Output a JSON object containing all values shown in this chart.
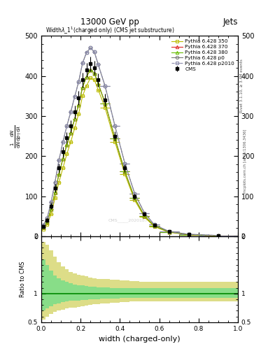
{
  "title_top": "13000 GeV pp",
  "title_right": "Jets",
  "plot_title": "Width$\\lambda$_1$^1$(charged only) (CMS jet substructure)",
  "xlabel": "width (charged-only)",
  "ylabel_ratio": "Ratio to CMS",
  "right_label_top": "Rivet 3.1.10, ≥ 3.4M events",
  "right_label_bottom": "mcplots.cern.ch [arXiv:1306.3436]",
  "watermark": "CMS_____2020187",
  "x_bins": [
    0.0,
    0.02,
    0.04,
    0.06,
    0.08,
    0.1,
    0.12,
    0.14,
    0.16,
    0.18,
    0.2,
    0.22,
    0.24,
    0.26,
    0.28,
    0.3,
    0.35,
    0.4,
    0.45,
    0.5,
    0.55,
    0.6,
    0.7,
    0.8,
    1.0
  ],
  "cms_values": [
    25,
    40,
    75,
    120,
    170,
    210,
    245,
    275,
    310,
    345,
    390,
    415,
    430,
    420,
    390,
    340,
    250,
    170,
    100,
    55,
    28,
    12,
    5,
    2
  ],
  "cms_errors": [
    4,
    5,
    8,
    10,
    12,
    13,
    14,
    15,
    16,
    17,
    18,
    18,
    18,
    18,
    17,
    16,
    12,
    9,
    7,
    5,
    3,
    2,
    1,
    1
  ],
  "p350_values": [
    18,
    30,
    55,
    95,
    135,
    170,
    205,
    235,
    270,
    305,
    350,
    375,
    395,
    390,
    365,
    320,
    235,
    155,
    90,
    48,
    24,
    10,
    4,
    1
  ],
  "p370_values": [
    22,
    36,
    68,
    110,
    155,
    193,
    228,
    258,
    293,
    328,
    372,
    398,
    415,
    407,
    380,
    332,
    244,
    162,
    95,
    51,
    26,
    11,
    4,
    1
  ],
  "p380_values": [
    22,
    36,
    68,
    110,
    155,
    193,
    228,
    258,
    293,
    328,
    372,
    398,
    415,
    407,
    380,
    332,
    244,
    162,
    95,
    51,
    26,
    11,
    4,
    1
  ],
  "p0_values": [
    28,
    45,
    85,
    135,
    190,
    235,
    275,
    310,
    348,
    385,
    432,
    458,
    470,
    460,
    428,
    374,
    275,
    182,
    107,
    58,
    29,
    12,
    5,
    2
  ],
  "p2010_values": [
    28,
    45,
    85,
    135,
    190,
    235,
    275,
    310,
    348,
    385,
    432,
    458,
    470,
    460,
    428,
    374,
    275,
    182,
    107,
    58,
    29,
    12,
    5,
    2
  ],
  "color_cms": "#000000",
  "color_p350": "#bbbb00",
  "color_p370": "#dd2222",
  "color_p380": "#66bb00",
  "color_p0": "#777777",
  "color_p2010": "#8888aa",
  "ylim_main": [
    0,
    500
  ],
  "yticks_main": [
    0,
    100,
    200,
    300,
    400,
    500
  ],
  "ylim_ratio": [
    0.5,
    2.0
  ],
  "ratio_yticks": [
    0.5,
    1.0,
    2.0
  ],
  "ratio_band_outer_color": "#dddd88",
  "ratio_band_inner_color": "#88dd88",
  "ratio_outer_lo": [
    0.55,
    0.6,
    0.65,
    0.68,
    0.7,
    0.72,
    0.74,
    0.75,
    0.76,
    0.77,
    0.78,
    0.79,
    0.8,
    0.81,
    0.82,
    0.83,
    0.84,
    0.85,
    0.86,
    0.86,
    0.86,
    0.86,
    0.86,
    0.86
  ],
  "ratio_outer_hi": [
    1.9,
    1.85,
    1.75,
    1.65,
    1.55,
    1.48,
    1.42,
    1.38,
    1.35,
    1.33,
    1.31,
    1.3,
    1.28,
    1.27,
    1.26,
    1.25,
    1.24,
    1.23,
    1.22,
    1.21,
    1.21,
    1.21,
    1.21,
    1.21
  ],
  "ratio_inner_lo": [
    0.7,
    0.74,
    0.78,
    0.81,
    0.83,
    0.85,
    0.86,
    0.87,
    0.88,
    0.88,
    0.89,
    0.89,
    0.9,
    0.9,
    0.9,
    0.91,
    0.91,
    0.92,
    0.92,
    0.92,
    0.92,
    0.92,
    0.92,
    0.92
  ],
  "ratio_inner_hi": [
    1.6,
    1.5,
    1.4,
    1.32,
    1.27,
    1.23,
    1.2,
    1.18,
    1.16,
    1.15,
    1.14,
    1.13,
    1.12,
    1.12,
    1.11,
    1.11,
    1.1,
    1.1,
    1.09,
    1.09,
    1.09,
    1.09,
    1.09,
    1.09
  ]
}
